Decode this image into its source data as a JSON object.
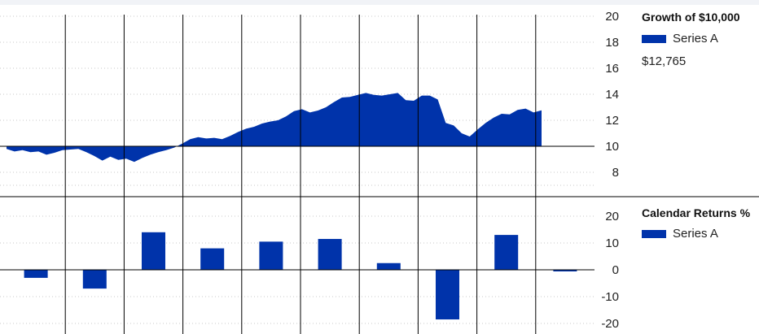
{
  "colors": {
    "series": "#0033aa",
    "grid_dotted": "#c8c8c8",
    "grid_solid": "#000000"
  },
  "growth": {
    "title": "Growth of $10,000",
    "legend_label": "Series A",
    "end_value_label": "$12,765",
    "y_ticks": [
      "20",
      "18",
      "16",
      "14",
      "12",
      "10",
      "8"
    ]
  },
  "returns": {
    "title": "Calendar Returns %",
    "legend_label": "Series A",
    "y_ticks": [
      "20",
      "10",
      "0",
      "-10",
      "-20"
    ]
  },
  "chart_data": [
    {
      "type": "area",
      "title": "Growth of $10,000",
      "ylim": [
        7,
        21
      ],
      "baseline": 10,
      "series": [
        {
          "name": "Series A",
          "values": [
            9.8,
            9.6,
            9.7,
            9.55,
            9.6,
            9.35,
            9.5,
            9.7,
            9.75,
            9.8,
            9.55,
            9.25,
            8.9,
            9.2,
            8.95,
            9.05,
            8.8,
            9.1,
            9.35,
            9.55,
            9.7,
            9.9,
            10.2,
            10.55,
            10.7,
            10.6,
            10.65,
            10.55,
            10.8,
            11.1,
            11.35,
            11.5,
            11.75,
            11.9,
            12.0,
            12.3,
            12.7,
            12.85,
            12.6,
            12.75,
            13.0,
            13.4,
            13.75,
            13.8,
            13.95,
            14.1,
            13.95,
            13.9,
            14.0,
            14.1,
            13.55,
            13.5,
            13.9,
            13.9,
            13.6,
            11.8,
            11.6,
            11.0,
            10.75,
            11.3,
            11.8,
            12.2,
            12.5,
            12.45,
            12.8,
            12.9,
            12.6,
            12.765
          ]
        }
      ]
    },
    {
      "type": "bar",
      "title": "Calendar Returns %",
      "ylim": [
        -20,
        20
      ],
      "series": [
        {
          "name": "Series A",
          "values": [
            -3,
            -7,
            14,
            8,
            10.5,
            11.5,
            2.5,
            -18.5,
            13,
            -0.6
          ]
        }
      ]
    }
  ]
}
